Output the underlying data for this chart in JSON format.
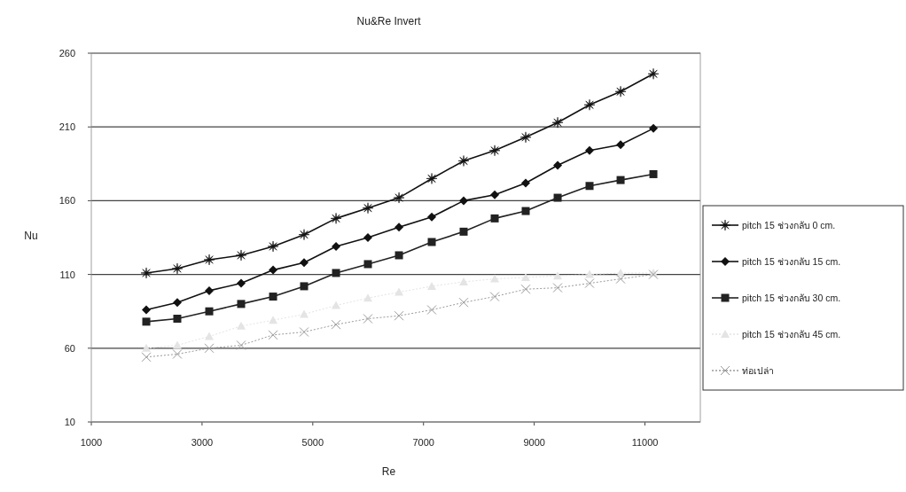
{
  "chart_data": {
    "type": "line",
    "title": "Nu&Re Invert",
    "xlabel": "Re",
    "ylabel": "Nu",
    "x": [
      1993,
      2553,
      3130,
      3706,
      4283,
      4843,
      5420,
      5996,
      6557,
      7149,
      7725,
      8286,
      8846,
      9423,
      9999,
      10560,
      11152
    ],
    "series": [
      {
        "name": "pitch 15 ช่วงกลับ 0 cm.",
        "color": "#111111",
        "marker": "star",
        "line_style": "solid",
        "values": [
          111,
          114,
          120,
          123,
          129,
          137,
          148,
          155,
          162,
          175,
          187,
          194,
          203,
          213,
          225,
          234,
          246
        ]
      },
      {
        "name": "pitch 15 ช่วงกลับ 15 cm.",
        "color": "#111111",
        "marker": "diamond",
        "line_style": "solid",
        "values": [
          86,
          91,
          99,
          104,
          113,
          118,
          129,
          135,
          142,
          149,
          160,
          164,
          172,
          184,
          194,
          198,
          209
        ]
      },
      {
        "name": "pitch 15 ช่วงกลับ 30 cm.",
        "color": "#222222",
        "marker": "square",
        "line_style": "solid",
        "values": [
          78,
          80,
          85,
          90,
          95,
          102,
          111,
          117,
          123,
          132,
          139,
          148,
          153,
          162,
          170,
          174,
          178
        ]
      },
      {
        "name": "pitch 15 ช่วงกลับ 45 cm.",
        "color": "#e4e4e4",
        "marker": "triangle",
        "line_style": "dotted",
        "values": [
          60,
          62,
          68,
          75,
          79,
          83,
          89,
          94,
          98,
          102,
          105,
          107,
          108,
          109,
          110,
          111,
          111
        ]
      },
      {
        "name": "ท่อเปล่า",
        "color": "#9a9a9a",
        "marker": "cross",
        "line_style": "dotted",
        "values": [
          54,
          56,
          60,
          62,
          69,
          71,
          76,
          80,
          82,
          86,
          91,
          95,
          100,
          101,
          104,
          107,
          110
        ]
      }
    ],
    "xlim": [
      1000,
      12000
    ],
    "ylim": [
      10,
      260
    ],
    "xticks": [
      1000,
      3000,
      5000,
      7000,
      9000,
      11000
    ],
    "yticks": [
      10,
      60,
      110,
      160,
      210,
      260
    ],
    "grid": "y",
    "legend": "right"
  }
}
